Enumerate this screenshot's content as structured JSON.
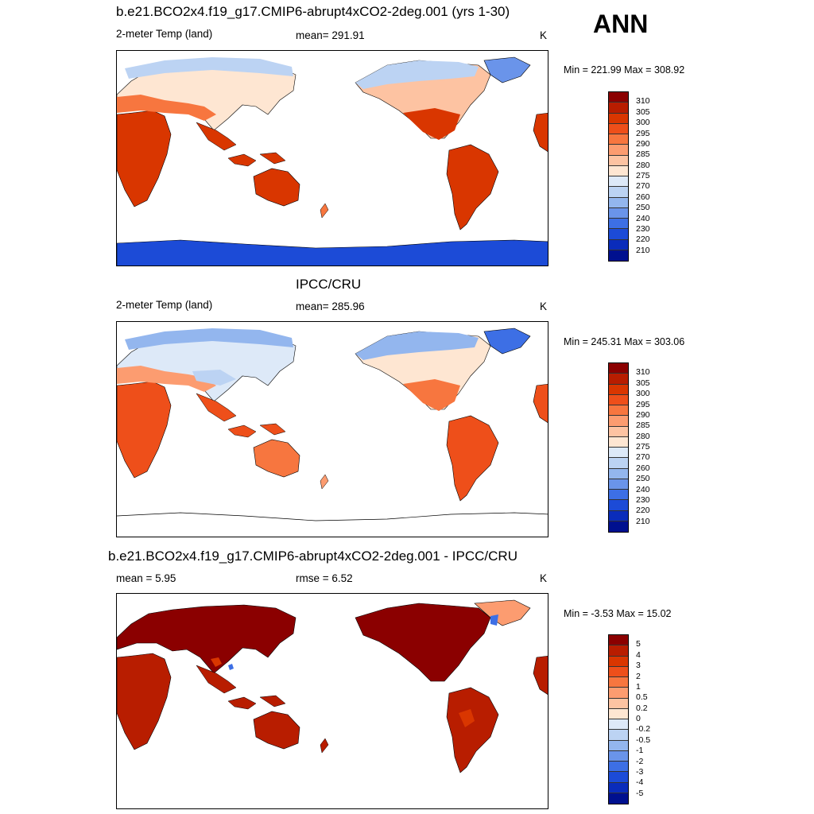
{
  "season": "ANN",
  "panels": [
    {
      "title": "b.e21.BCO2x4.f19_g17.CMIP6-abrupt4xCO2-2deg.001 (yrs 1-30)",
      "left": "2-meter Temp (land)",
      "center": "mean= 291.91",
      "right": "K",
      "minmax": "Min = 221.99 Max = 308.92",
      "colorbar": {
        "labels": [
          "310",
          "305",
          "300",
          "295",
          "290",
          "285",
          "280",
          "275",
          "270",
          "260",
          "250",
          "240",
          "230",
          "220",
          "210"
        ],
        "colors": [
          "#8b0000",
          "#b81d00",
          "#d93600",
          "#ee4f1a",
          "#f7763f",
          "#fc9c70",
          "#fdc3a2",
          "#fee6d2",
          "#dde9f8",
          "#bcd3f3",
          "#93b6ee",
          "#6a94ea",
          "#3d6fe5",
          "#1c4bd7",
          "#0a2cbb",
          "#00108f"
        ]
      }
    },
    {
      "title": "IPCC/CRU",
      "left": "2-meter Temp (land)",
      "center": "mean= 285.96",
      "right": "K",
      "minmax": "Min = 245.31 Max = 303.06",
      "colorbar": {
        "labels": [
          "310",
          "305",
          "300",
          "295",
          "290",
          "285",
          "280",
          "275",
          "270",
          "260",
          "250",
          "240",
          "230",
          "220",
          "210"
        ],
        "colors": [
          "#8b0000",
          "#b81d00",
          "#d93600",
          "#ee4f1a",
          "#f7763f",
          "#fc9c70",
          "#fdc3a2",
          "#fee6d2",
          "#dde9f8",
          "#bcd3f3",
          "#93b6ee",
          "#6a94ea",
          "#3d6fe5",
          "#1c4bd7",
          "#0a2cbb",
          "#00108f"
        ]
      }
    },
    {
      "title": "b.e21.BCO2x4.f19_g17.CMIP6-abrupt4xCO2-2deg.001 - IPCC/CRU",
      "left": "mean =   5.95",
      "center": "rmse =   6.52",
      "right": "K",
      "minmax": "Min =  -3.53 Max =  15.02",
      "colorbar": {
        "labels": [
          "5",
          "4",
          "3",
          "2",
          "1",
          "0.5",
          "0.2",
          "0",
          "-0.2",
          "-0.5",
          "-1",
          "-2",
          "-3",
          "-4",
          "-5"
        ],
        "colors": [
          "#8b0000",
          "#b81d00",
          "#d93600",
          "#ee4f1a",
          "#f7763f",
          "#fc9c70",
          "#fdc3a2",
          "#fee6d2",
          "#dde9f8",
          "#bcd3f3",
          "#93b6ee",
          "#6a94ea",
          "#3d6fe5",
          "#1c4bd7",
          "#0a2cbb",
          "#00108f"
        ]
      }
    }
  ]
}
